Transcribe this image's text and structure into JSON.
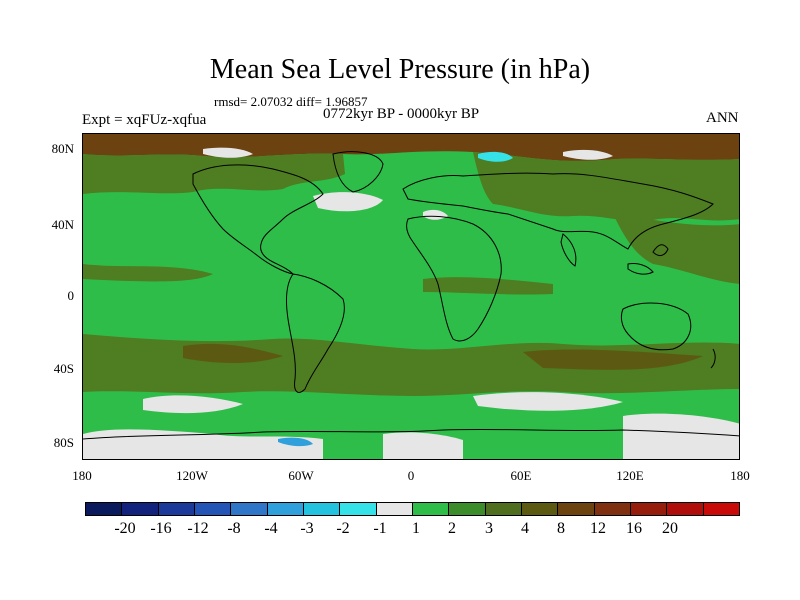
{
  "title": "Mean Sea Level Pressure (in hPa)",
  "stats": "rmsd= 2.07032 diff= 1.96857",
  "period": "0772kyr BP - 0000kyr BP",
  "experiment": "Expt = xqFUz-xqfua",
  "season": "ANN",
  "y_axis": {
    "ticks": [
      "80N",
      "40N",
      "0",
      "40S",
      "80S"
    ]
  },
  "x_axis": {
    "ticks": [
      "180",
      "120W",
      "60W",
      "0",
      "60E",
      "120E",
      "180"
    ]
  },
  "colorbar": {
    "colors": [
      "#0a1a5c",
      "#13237d",
      "#1d3a9a",
      "#2454b5",
      "#2f76c9",
      "#2fa0db",
      "#23c3e0",
      "#35e2e8",
      "#e6e6e6",
      "#2fbd4a",
      "#3d8c2c",
      "#4f6e1f",
      "#5c5a12",
      "#6b4210",
      "#7e3010",
      "#961d0c",
      "#b00e0a",
      "#c80a08"
    ],
    "labels": [
      "-20",
      "-16",
      "-12",
      "-8",
      "-4",
      "-3",
      "-2",
      "-1",
      "1",
      "2",
      "3",
      "4",
      "8",
      "12",
      "16",
      "20"
    ]
  },
  "map_colors": {
    "light_green": "#2fbd4a",
    "dark_green": "#4e7d22",
    "olive": "#5c5a12",
    "brown": "#6b4210",
    "white": "#e6e6e6",
    "cyan": "#35e2e8",
    "blue": "#2fa0db"
  }
}
